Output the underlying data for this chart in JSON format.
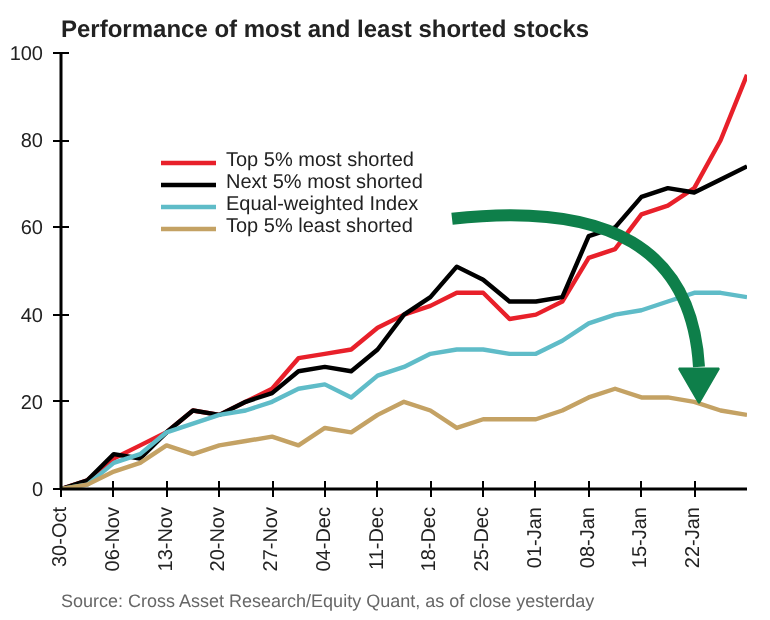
{
  "chart_data": {
    "type": "line",
    "title": "Performance of most and least shorted stocks",
    "annotations": [
      "Source: Cross Asset Research/Equity Quant, as of close yesterday"
    ],
    "categories": [
      "30-Oct",
      null,
      "06-Nov",
      null,
      "13-Nov",
      null,
      "20-Nov",
      null,
      "27-Nov",
      null,
      "04-Dec",
      null,
      "11-Dec",
      null,
      "18-Dec",
      null,
      "25-Dec",
      null,
      "01-Jan",
      null,
      "08-Jan",
      null,
      "15-Jan",
      null,
      "22-Jan",
      null,
      null
    ],
    "series": [
      {
        "name": "Top 5% most shorted",
        "color": "#e8202a",
        "values": [
          0,
          2,
          7,
          10,
          13,
          18,
          17,
          20,
          23,
          30,
          31,
          32,
          37,
          40,
          42,
          45,
          45,
          39,
          40,
          43,
          53,
          55,
          63,
          65,
          69,
          80,
          95
        ]
      },
      {
        "name": "Next 5% most shorted",
        "color": "#000000",
        "values": [
          0,
          2,
          8,
          7,
          13,
          18,
          17,
          20,
          22,
          27,
          28,
          27,
          32,
          40,
          44,
          51,
          48,
          43,
          43,
          44,
          58,
          60,
          67,
          69,
          68,
          71,
          74
        ]
      },
      {
        "name": "Equal-weighted Index",
        "color": "#5fbcc8",
        "values": [
          0,
          1,
          6,
          8,
          13,
          15,
          17,
          18,
          20,
          23,
          24,
          21,
          26,
          28,
          31,
          32,
          32,
          31,
          31,
          34,
          38,
          40,
          41,
          43,
          45,
          45,
          44
        ]
      },
      {
        "name": "Top 5% least shorted",
        "color": "#c4a264",
        "values": [
          0,
          1,
          4,
          6,
          10,
          8,
          10,
          11,
          12,
          10,
          14,
          13,
          17,
          20,
          18,
          14,
          16,
          16,
          16,
          18,
          21,
          23,
          21,
          21,
          20,
          18,
          17
        ]
      }
    ],
    "ylim": [
      0,
      100
    ],
    "yticks": [
      0,
      20,
      40,
      60,
      80,
      100
    ],
    "legend": "top left",
    "line_style": "solid"
  }
}
